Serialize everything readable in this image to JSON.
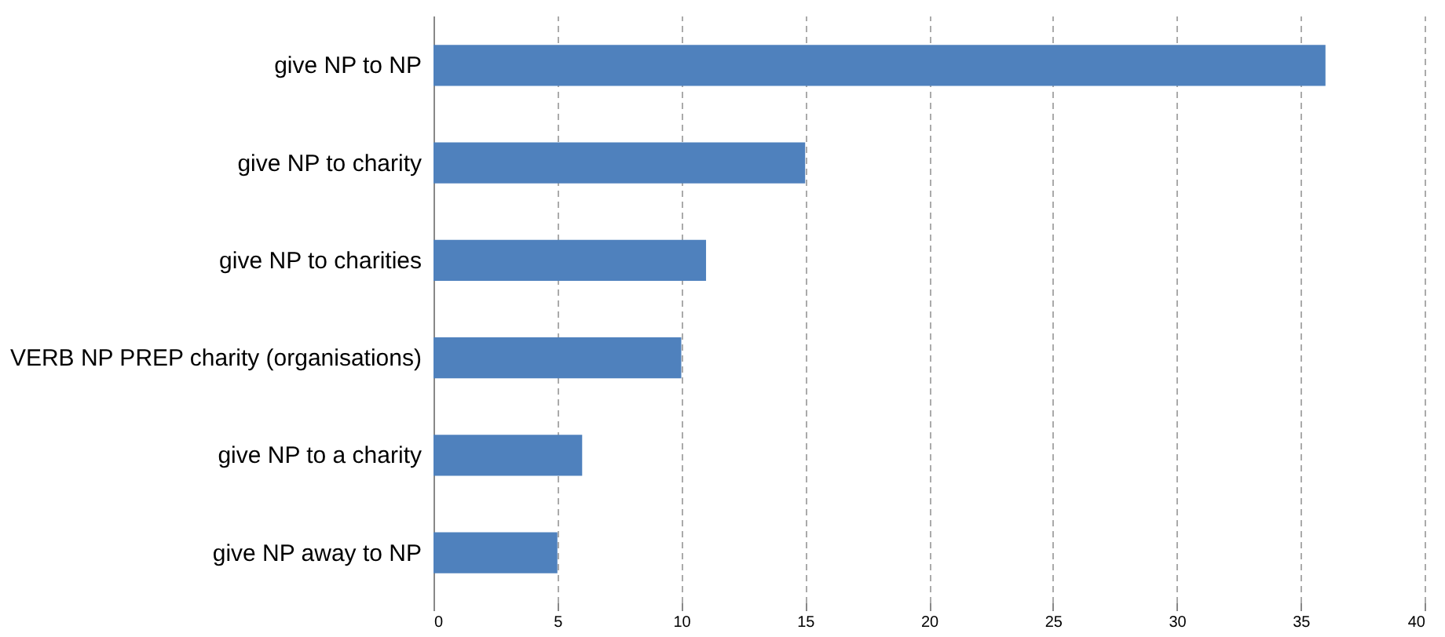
{
  "chart_data": {
    "type": "bar",
    "orientation": "horizontal",
    "categories": [
      "give NP to NP",
      "give NP to charity",
      "give NP to charities",
      "VERB NP PREP charity (organisations)",
      "give NP to a charity",
      "give NP away to NP"
    ],
    "series": [
      {
        "color": "#4f81bd",
        "values": [
          36,
          15,
          11,
          10,
          6,
          5
        ]
      }
    ],
    "xlim": [
      0,
      40
    ],
    "xticks": [
      0,
      5,
      10,
      15,
      20,
      25,
      30,
      35,
      40
    ],
    "grid": "x"
  }
}
